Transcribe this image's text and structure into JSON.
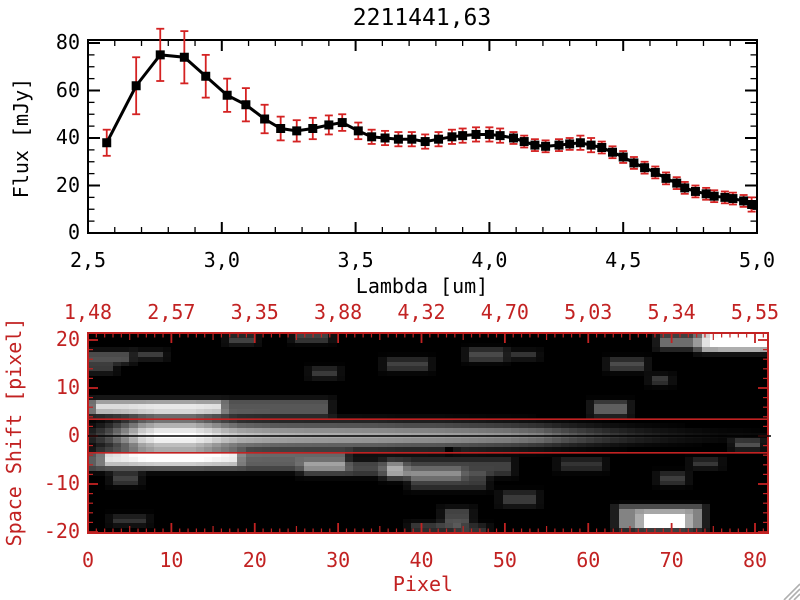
{
  "title": "2211441,63",
  "colors": {
    "axis_black": "#000000",
    "accent_red": "#c22222",
    "error_bar_red": "#d42222",
    "image_background": "#000000",
    "page_background": "#ffffff",
    "resize_grip_gray": "#b0b0b0"
  },
  "spectrum_plot": {
    "ylabel": "Flux [mJy]",
    "xlabel": "Lambda [um]",
    "x_ticks": {
      "labels": [
        "2,5",
        "3,0",
        "3,5",
        "4,0",
        "4,5",
        "5,0"
      ],
      "values": [
        2.5,
        3.0,
        3.5,
        4.0,
        4.5,
        5.0
      ]
    },
    "y_ticks": {
      "labels": [
        "0",
        "20",
        "40",
        "60",
        "80"
      ],
      "values": [
        0,
        20,
        40,
        60,
        80
      ]
    },
    "x_range": [
      2.5,
      5.0
    ],
    "y_range": [
      0,
      80
    ]
  },
  "image_plot": {
    "xlabel": "Pixel",
    "ylabel": "Space Shift [pixel]",
    "top_ticks": {
      "labels": [
        "1,48",
        "2,57",
        "3,35",
        "3,88",
        "4,32",
        "4,70",
        "5,03",
        "5,34",
        "5,55"
      ],
      "values": [
        0,
        10,
        20,
        30,
        40,
        50,
        60,
        70,
        80
      ]
    },
    "bottom_ticks": {
      "labels": [
        "0",
        "10",
        "20",
        "30",
        "40",
        "50",
        "60",
        "70",
        "80"
      ],
      "values": [
        0,
        10,
        20,
        30,
        40,
        50,
        60,
        70,
        80
      ]
    },
    "left_ticks": {
      "labels": [
        "20",
        "10",
        "0",
        "-10",
        "-20"
      ],
      "values": [
        20,
        10,
        0,
        -10,
        -20
      ]
    },
    "x_range": [
      0,
      81.5
    ],
    "y_range": [
      -20.8,
      21.5
    ]
  },
  "chart_data": [
    {
      "type": "line",
      "title": "2211441,63",
      "xlabel": "Lambda [um]",
      "ylabel": "Flux [mJy]",
      "xlim": [
        2.5,
        5.0
      ],
      "ylim": [
        0,
        80
      ],
      "grid": false,
      "marker": "filled-square",
      "series": [
        {
          "name": "spectrum",
          "x": [
            2.57,
            2.68,
            2.77,
            2.86,
            2.94,
            3.02,
            3.09,
            3.16,
            3.22,
            3.28,
            3.34,
            3.4,
            3.45,
            3.51,
            3.56,
            3.61,
            3.66,
            3.71,
            3.76,
            3.81,
            3.86,
            3.9,
            3.95,
            4.0,
            4.04,
            4.09,
            4.13,
            4.17,
            4.21,
            4.26,
            4.3,
            4.34,
            4.38,
            4.42,
            4.46,
            4.5,
            4.54,
            4.58,
            4.62,
            4.66,
            4.7,
            4.73,
            4.77,
            4.81,
            4.84,
            4.88,
            4.91,
            4.95,
            4.98
          ],
          "y": [
            38,
            62,
            75,
            74,
            66,
            58,
            54,
            48,
            44,
            43,
            44,
            45.5,
            46.5,
            43,
            40.5,
            40,
            39.5,
            39.5,
            38.5,
            39.5,
            40.5,
            41,
            41.5,
            41.5,
            41,
            40,
            38.5,
            37,
            36.5,
            37,
            37.5,
            38,
            37,
            36,
            34,
            32,
            29.5,
            27.5,
            25.5,
            23,
            21,
            19,
            17.5,
            16.5,
            15.5,
            15,
            14.5,
            13.5,
            12
          ],
          "yerr": [
            5.5,
            12,
            11,
            11,
            9,
            7,
            7,
            6,
            5,
            4.5,
            4.5,
            4,
            3.5,
            3.5,
            3,
            3,
            3,
            3,
            3,
            3,
            3,
            3,
            3,
            3,
            3,
            2.5,
            2.5,
            2.5,
            2.5,
            2.5,
            2.5,
            3,
            3,
            2.5,
            2.5,
            2.5,
            2.5,
            2.5,
            2.5,
            2.5,
            2.5,
            2.5,
            2.5,
            2.5,
            2.5,
            2.5,
            2.5,
            2.5,
            3
          ]
        }
      ]
    },
    {
      "type": "heatmap",
      "xlabel": "Pixel",
      "ylabel": "Space Shift [pixel]",
      "xlim": [
        0,
        81.5
      ],
      "ylim": [
        -20.8,
        21.5
      ],
      "top_axis_wavelengths": [
        1.48,
        2.57,
        3.35,
        3.88,
        4.32,
        4.7,
        5.03,
        5.34,
        5.55
      ],
      "aperture_lines_shift": [
        3.5,
        -3.5
      ],
      "center_line_shift": 0,
      "trace_profile": [
        [
          0,
          40,
          2.0
        ],
        [
          2,
          85,
          2.5
        ],
        [
          4,
          150,
          2.9
        ],
        [
          6,
          225,
          3.3
        ],
        [
          8,
          255,
          3.5
        ],
        [
          12,
          255,
          3.5
        ],
        [
          14,
          238,
          3.2
        ],
        [
          16,
          208,
          2.9
        ],
        [
          18,
          192,
          2.6
        ],
        [
          22,
          180,
          2.5
        ],
        [
          26,
          174,
          2.5
        ],
        [
          30,
          171,
          2.5
        ],
        [
          34,
          168,
          2.5
        ],
        [
          38,
          164,
          2.4
        ],
        [
          42,
          159,
          2.4
        ],
        [
          46,
          153,
          2.3
        ],
        [
          50,
          146,
          2.2
        ],
        [
          54,
          127,
          2.1
        ],
        [
          57,
          97,
          2.0
        ],
        [
          60,
          74,
          1.9
        ],
        [
          63,
          54,
          1.8
        ],
        [
          66,
          38,
          1.7
        ],
        [
          69,
          27,
          1.6
        ],
        [
          72,
          19,
          1.5
        ],
        [
          76,
          11,
          1.4
        ],
        [
          82,
          5,
          1.2
        ]
      ],
      "features": [
        [
          0,
          7,
          29,
          3,
          60
        ],
        [
          1,
          6.5,
          15,
          2,
          92
        ],
        [
          0,
          -4,
          31,
          3.5,
          65
        ],
        [
          2,
          -4,
          16,
          2.5,
          92
        ],
        [
          26,
          -6,
          12,
          2.5,
          50
        ],
        [
          36,
          -7.5,
          9,
          2,
          42
        ],
        [
          0,
          17,
          5,
          2,
          55
        ],
        [
          6,
          17,
          3,
          1,
          45
        ],
        [
          0,
          14.5,
          3,
          1.5,
          40
        ],
        [
          17,
          20.5,
          3,
          1.5,
          45
        ],
        [
          25,
          21,
          4,
          1.5,
          48
        ],
        [
          27,
          13.5,
          3,
          1.5,
          40
        ],
        [
          36,
          15.5,
          5,
          2,
          45
        ],
        [
          46,
          17.5,
          4,
          2,
          50
        ],
        [
          51,
          17,
          3,
          1,
          38
        ],
        [
          36,
          -5.5,
          15,
          3,
          45
        ],
        [
          39,
          -8.5,
          9,
          3,
          40
        ],
        [
          43,
          -16,
          3,
          3,
          48
        ],
        [
          50,
          -12.5,
          4,
          2.5,
          40
        ],
        [
          39,
          -19,
          6,
          1.5,
          40
        ],
        [
          45,
          -19.5,
          3,
          1.5,
          35
        ],
        [
          57,
          -5.5,
          5,
          2,
          35
        ],
        [
          61,
          6.5,
          4,
          2.5,
          65
        ],
        [
          63,
          15.5,
          4,
          2,
          52
        ],
        [
          68,
          12,
          2,
          1.5,
          42
        ],
        [
          69,
          20.5,
          5,
          2.5,
          75
        ],
        [
          74,
          21,
          8,
          3.5,
          140
        ],
        [
          76,
          20.5,
          5,
          2,
          190
        ],
        [
          64,
          -15.5,
          10,
          4.5,
          90
        ],
        [
          67,
          -17,
          5,
          2.5,
          130
        ],
        [
          69,
          -8.5,
          3,
          2,
          42
        ],
        [
          73,
          -5.5,
          3,
          1.5,
          38
        ],
        [
          78,
          -1.5,
          3,
          1.5,
          55
        ],
        [
          3,
          -17.5,
          4,
          1.5,
          35
        ],
        [
          3,
          -8.5,
          3,
          2,
          45
        ],
        [
          43,
          -3,
          1,
          1,
          0
        ]
      ]
    }
  ],
  "decorations": {
    "resize_grip": true
  }
}
